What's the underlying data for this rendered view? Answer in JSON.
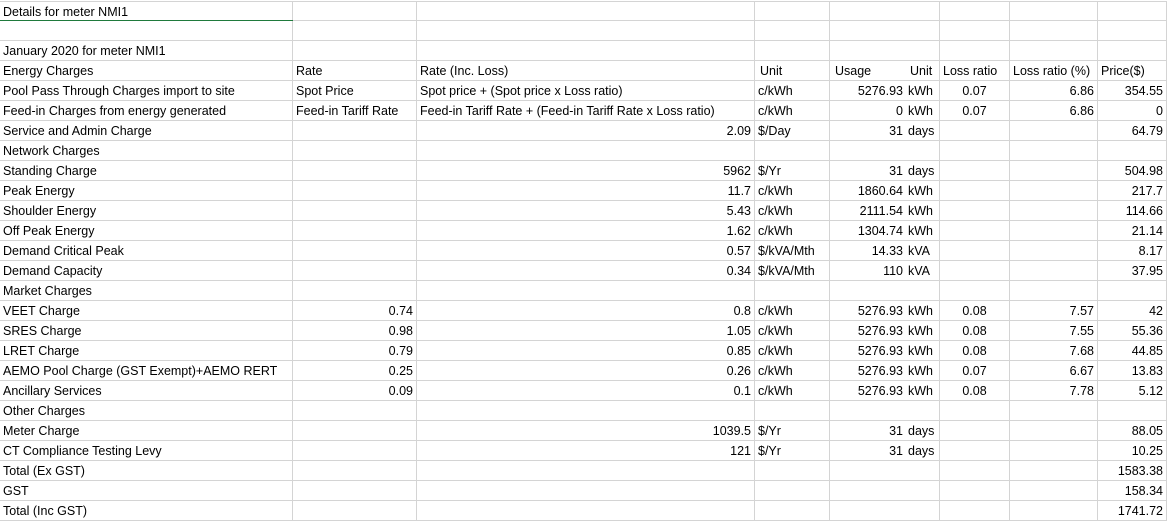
{
  "sheet_title": "Details for meter NMI1",
  "period_title": "January 2020 for meter NMI1",
  "header": {
    "label": "Energy Charges",
    "rate": "Rate",
    "rate_inc_loss": "Rate (Inc. Loss)",
    "unit": "Unit",
    "usage": "Usage",
    "usage_unit": "Unit",
    "loss_ratio": "Loss ratio",
    "loss_ratio_pct": "Loss ratio (%)",
    "price": "Price($)"
  },
  "rows": [
    {
      "label": "Pool Pass Through Charges import to site",
      "b": "Spot Price",
      "c": "Spot price + (Spot price x Loss ratio)",
      "d": "c/kWh",
      "e_val": "5276.93",
      "e_unit": "kWh",
      "f": "0.07",
      "g": "6.86",
      "h": "354.55"
    },
    {
      "label": "Feed-in Charges from energy generated",
      "b": "Feed-in Tariff Rate",
      "c": "Feed-in Tariff Rate + (Feed-in Tariff Rate x Loss ratio)",
      "d": "c/kWh",
      "e_val": "0",
      "e_unit": "kWh",
      "f": "0.07",
      "g": "6.86",
      "h": "0"
    },
    {
      "label": "Service and Admin Charge",
      "c_val": "2.09",
      "d": "$/Day",
      "e_val": "31",
      "e_unit": "days",
      "h": "64.79"
    },
    {
      "label": "Network Charges"
    },
    {
      "label": "Standing Charge",
      "c_val": "5962",
      "d": "$/Yr",
      "e_val": "31",
      "e_unit": "days",
      "h": "504.98"
    },
    {
      "label": "Peak Energy",
      "c_val": "11.7",
      "d": "c/kWh",
      "e_val": "1860.64",
      "e_unit": "kWh",
      "h": "217.7"
    },
    {
      "label": "Shoulder Energy",
      "c_val": "5.43",
      "d": "c/kWh",
      "e_val": "2111.54",
      "e_unit": "kWh",
      "h": "114.66"
    },
    {
      "label": "Off Peak Energy",
      "c_val": "1.62",
      "d": "c/kWh",
      "e_val": "1304.74",
      "e_unit": "kWh",
      "h": "21.14"
    },
    {
      "label": "Demand Critical Peak",
      "c_val": "0.57",
      "d": "$/kVA/Mth",
      "e_val": "14.33",
      "e_unit": "kVA",
      "h": "8.17"
    },
    {
      "label": "Demand Capacity",
      "c_val": "0.34",
      "d": "$/kVA/Mth",
      "e_val": "110",
      "e_unit": "kVA",
      "h": "37.95"
    },
    {
      "label": "Market Charges"
    },
    {
      "label": "VEET Charge",
      "b_num": "0.74",
      "c_val": "0.8",
      "d": "c/kWh",
      "e_val": "5276.93",
      "e_unit": "kWh",
      "f": "0.08",
      "g": "7.57",
      "h": "42"
    },
    {
      "label": "SRES Charge",
      "b_num": "0.98",
      "c_val": "1.05",
      "d": "c/kWh",
      "e_val": "5276.93",
      "e_unit": "kWh",
      "f": "0.08",
      "g": "7.55",
      "h": "55.36"
    },
    {
      "label": "LRET Charge",
      "b_num": "0.79",
      "c_val": "0.85",
      "d": "c/kWh",
      "e_val": "5276.93",
      "e_unit": "kWh",
      "f": "0.08",
      "g": "7.68",
      "h": "44.85"
    },
    {
      "label": "AEMO Pool Charge (GST Exempt)+AEMO RERT",
      "b_num": "0.25",
      "c_val": "0.26",
      "d": "c/kWh",
      "e_val": "5276.93",
      "e_unit": "kWh",
      "f": "0.07",
      "g": "6.67",
      "h": "13.83"
    },
    {
      "label": "Ancillary Services",
      "b_num": "0.09",
      "c_val": "0.1",
      "d": "c/kWh",
      "e_val": "5276.93",
      "e_unit": "kWh",
      "f": "0.08",
      "g": "7.78",
      "h": "5.12"
    },
    {
      "label": "Other Charges"
    },
    {
      "label": "Meter Charge",
      "c_val": "1039.5",
      "d": "$/Yr",
      "e_val": "31",
      "e_unit": "days",
      "h": "88.05"
    },
    {
      "label": "CT Compliance Testing Levy",
      "c_val": "121",
      "d": "$/Yr",
      "e_val": "31",
      "e_unit": "days",
      "h": "10.25"
    },
    {
      "label": "Total (Ex GST)",
      "h": "1583.38"
    },
    {
      "label": "GST",
      "h": "158.34"
    },
    {
      "label": "Total (Inc GST)",
      "h": "1741.72"
    }
  ]
}
